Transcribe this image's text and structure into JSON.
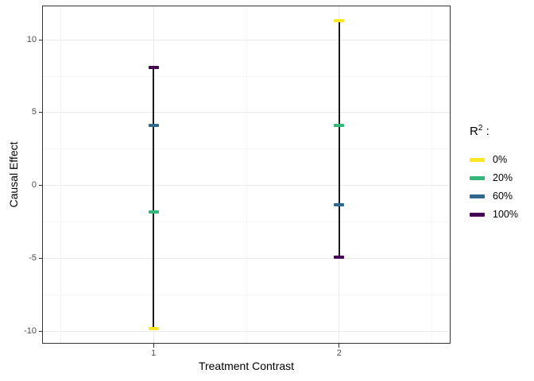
{
  "chart_data": {
    "type": "errorbar",
    "title": "",
    "xlabel": "Treatment Contrast",
    "ylabel": "Causal Effect",
    "xlim": [
      0.4,
      2.6
    ],
    "ylim": [
      -10.85,
      12.35
    ],
    "grid": true,
    "legend_position": "right",
    "x_ticks": [
      {
        "v": 1,
        "label": "1"
      },
      {
        "v": 2,
        "label": "2"
      }
    ],
    "y_ticks": [
      {
        "v": -10,
        "label": "-10"
      },
      {
        "v": -5,
        "label": "-5"
      },
      {
        "v": 0,
        "label": "0"
      },
      {
        "v": 5,
        "label": "5"
      },
      {
        "v": 10,
        "label": "10"
      }
    ],
    "x_minor_gridlines": [
      0.5,
      1.5,
      2.5
    ],
    "y_minor_gridlines": [
      -7.5,
      -2.5,
      2.5,
      7.5
    ],
    "x_positions": [
      1,
      2
    ],
    "series": [
      {
        "name": "0%",
        "color": "#FDE725",
        "values": [
          -9.8,
          11.3
        ]
      },
      {
        "name": "20%",
        "color": "#35B779",
        "values": [
          -1.8,
          4.1
        ]
      },
      {
        "name": "60%",
        "color": "#31688E",
        "values": [
          4.1,
          -1.3
        ]
      },
      {
        "name": "100%",
        "color": "#440154",
        "values": [
          8.1,
          -4.9
        ]
      }
    ],
    "ranges": [
      {
        "x": 1,
        "min": -9.8,
        "max": 8.1
      },
      {
        "x": 2,
        "min": -4.9,
        "max": 11.3
      }
    ],
    "legend": {
      "title_base": "R",
      "title_sup": "2",
      "title_colon": ":",
      "entries": [
        {
          "label": "0%",
          "color": "#FDE725"
        },
        {
          "label": "20%",
          "color": "#35B779"
        },
        {
          "label": "60%",
          "color": "#31688E"
        },
        {
          "label": "100%",
          "color": "#440154"
        }
      ]
    },
    "colors": {
      "background": "#FFFFFF",
      "panel_background": "#FFFFFF",
      "grid_major": "#EBEBEB",
      "grid_minor": "#F5F5F5",
      "panel_border": "#333333",
      "errorbar_line": "#1A1A1A",
      "tick_mark": "#333333",
      "tick_label": "#4D4D4D",
      "axis_title": "#000000"
    }
  }
}
